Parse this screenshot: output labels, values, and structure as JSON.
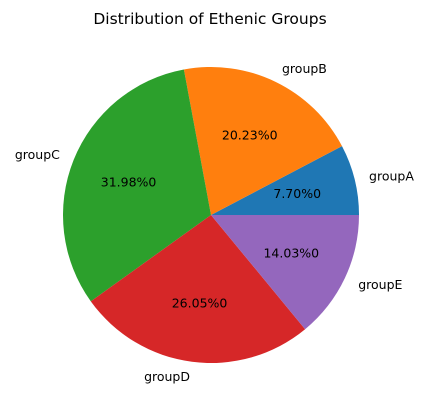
{
  "chart_data": {
    "type": "pie",
    "title": "Distribution of Ethenic Groups",
    "categories": [
      "groupA",
      "groupB",
      "groupC",
      "groupD",
      "groupE"
    ],
    "values": [
      7.7,
      20.23,
      31.98,
      26.05,
      14.03
    ],
    "pct_labels": [
      "7.70%0",
      "20.23%0",
      "31.98%0",
      "26.05%0",
      "14.03%0"
    ],
    "colors": [
      "#1f77b4",
      "#ff7f0e",
      "#2ca02c",
      "#d62728",
      "#9467bd"
    ],
    "start_angle_deg": 0,
    "direction": "counterclockwise",
    "legend": "none"
  }
}
